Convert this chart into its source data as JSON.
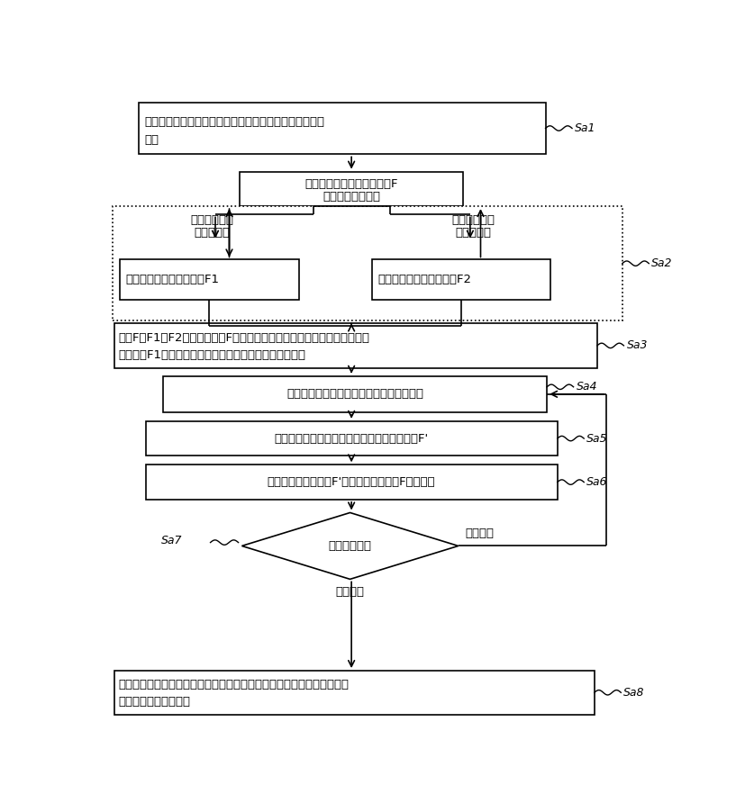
{
  "bg_color": "#ffffff",
  "box_texts": {
    "box1": "通过变焦马达到对应的焦点和聚焦马达自动聚焦到对应的\n位置",
    "box2": "获取当前的图像的清晰度値F\n，并记录聚焦位置",
    "box_left_top": "驱动聚焦马达\n往左走几步",
    "box_left": "获取当前图像的清晰度値F1",
    "box_right_top": "驱动聚焦马达\n往右走几步",
    "box_right": "获取当前图像的清晰度値F2",
    "box3_line1": "通过F、F1、F2値对比，基于F値的位置，选择移动方向，向左还是向右移",
    "box3_line2": "动；若向F1清晰度越好，则向左驱动，否则向反方向移动",
    "box4": "选定方向后，驱动聚焦马达到固定步长位置",
    "box5": "根据固定步长位置获取当前的图像的清晰度値F'",
    "box6": "根据图像的清晰度値F'和图像的清晰度値F计算斜率",
    "diamond": "判断斜率变化",
    "box8_line1": "在当前点，减小步长向左和向右驱动聚焦马达，反复三次，取到最终的最",
    "box8_line2": "清晰点，自动聚焦完成",
    "slope_up": "斜率上升",
    "slope_down": "斜率下降"
  },
  "Sa_labels": [
    "Sa1",
    "Sa2",
    "Sa3",
    "Sa4",
    "Sa5",
    "Sa6",
    "Sa7",
    "Sa8"
  ]
}
